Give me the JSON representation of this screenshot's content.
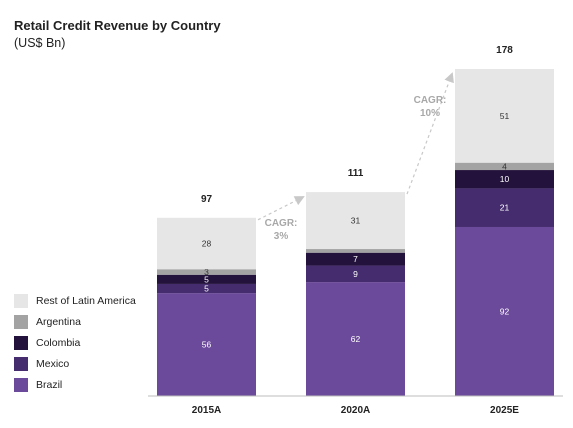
{
  "chart_data": {
    "type": "bar",
    "stacked": true,
    "title": "Retail Credit Revenue by Country",
    "subtitle": "(US$ Bn)",
    "categories": [
      "2015A",
      "2020A",
      "2025E"
    ],
    "totals": [
      97,
      111,
      178
    ],
    "series": [
      {
        "name": "Brazil",
        "values": [
          56,
          62,
          92
        ],
        "color": "#6c4a9b",
        "label_color": "#ffffff",
        "labels": [
          "56",
          "62",
          "92"
        ]
      },
      {
        "name": "Mexico",
        "values": [
          5,
          9,
          21
        ],
        "color": "#452c6e",
        "label_color": "#ffffff",
        "labels": [
          "5",
          "9",
          "21"
        ]
      },
      {
        "name": "Colombia",
        "values": [
          5,
          7,
          10
        ],
        "color": "#23123c",
        "label_color": "#ffffff",
        "labels": [
          "5",
          "7",
          "10"
        ]
      },
      {
        "name": "Argentina",
        "values": [
          3,
          2,
          4
        ],
        "color": "#a3a3a3",
        "label_color": "#333333",
        "labels": [
          "3",
          "",
          "4"
        ]
      },
      {
        "name": "Rest of Latin America",
        "values": [
          28,
          31,
          51
        ],
        "color": "#e6e6e6",
        "label_color": "#333333",
        "labels": [
          "28",
          "31",
          "51"
        ]
      }
    ],
    "annotations": [
      {
        "from": "2015A",
        "to": "2020A",
        "line1": "CAGR:",
        "line2": "3%"
      },
      {
        "from": "2020A",
        "to": "2025E",
        "line1": "CAGR:",
        "line2": "10%"
      }
    ],
    "legend_position": "bottom-left",
    "grid": false,
    "ylim": [
      0,
      178
    ]
  }
}
